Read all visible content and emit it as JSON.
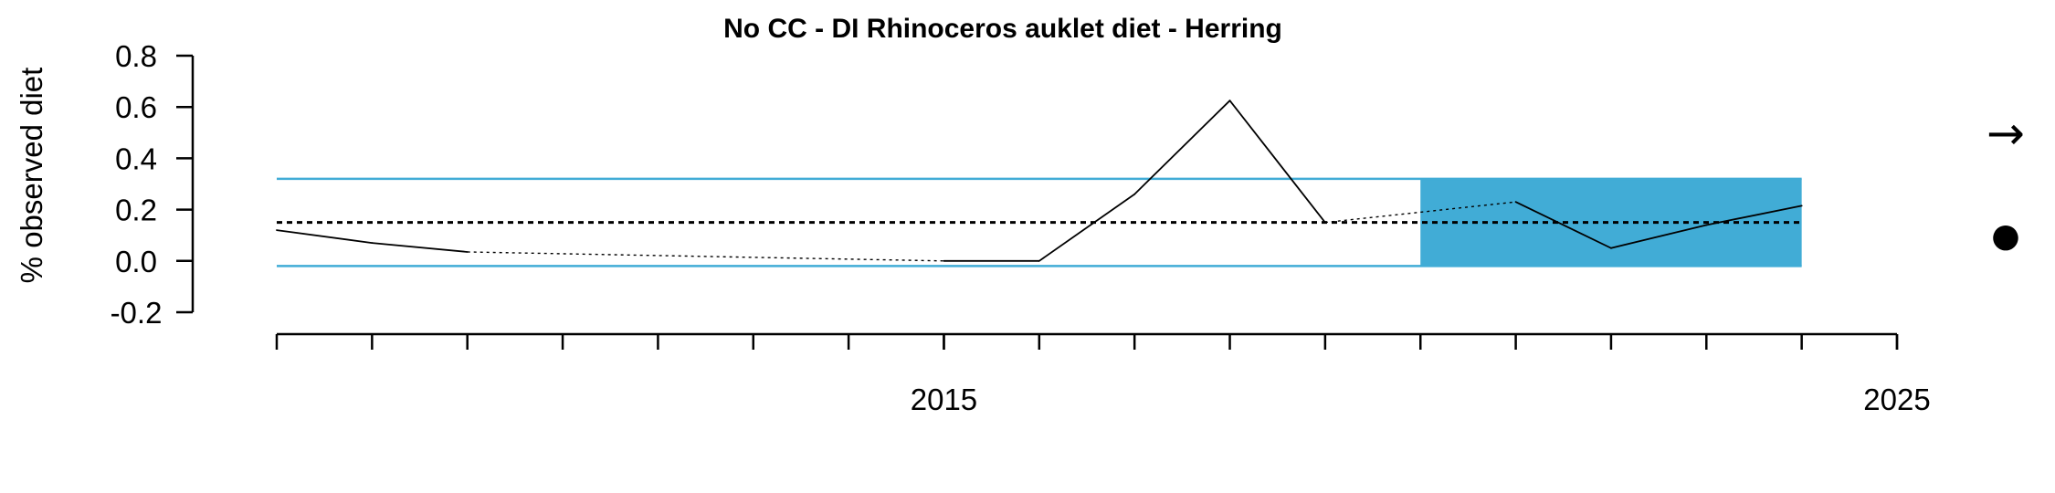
{
  "chart_data": {
    "type": "line",
    "title": "No CC - DI Rhinoceros auklet diet - Herring",
    "ylabel": "% observed diet",
    "xlabel": "",
    "xlim": [
      2008,
      2025
    ],
    "ylim": [
      -0.2,
      0.8
    ],
    "y_ticks": [
      -0.2,
      0.0,
      0.2,
      0.4,
      0.6,
      0.8
    ],
    "y_tick_labels": [
      "-0.2",
      "0.0",
      "0.2",
      "0.4",
      "0.6",
      "0.8"
    ],
    "x_minor_ticks": [
      2008,
      2009,
      2010,
      2011,
      2012,
      2013,
      2014,
      2015,
      2016,
      2017,
      2018,
      2019,
      2020,
      2021,
      2022,
      2023,
      2024,
      2025
    ],
    "x_major_ticks": [
      2015,
      2025
    ],
    "x_tick_labels": [
      "2015",
      "2025"
    ],
    "series": [
      {
        "x": [
          2008,
          2009,
          2010,
          2015,
          2016,
          2017,
          2018,
          2019,
          2021,
          2022,
          2023,
          2024
        ],
        "values": [
          0.12,
          0.07,
          0.035,
          0.0,
          0.0,
          0.26,
          0.625,
          0.15,
          0.23,
          0.05,
          0.14,
          0.215
        ],
        "solid_segments": [
          [
            0,
            1
          ],
          [
            1,
            2
          ],
          [
            3,
            4
          ],
          [
            4,
            5
          ],
          [
            5,
            6
          ],
          [
            6,
            7
          ],
          [
            8,
            9
          ],
          [
            9,
            10
          ],
          [
            10,
            11
          ]
        ],
        "gap_segments": [
          [
            2,
            3
          ],
          [
            7,
            8
          ]
        ],
        "color": "#000000"
      }
    ],
    "long_term_mean": 0.15,
    "upper_band": 0.32,
    "lower_band": -0.02,
    "band_color": "#41acd6",
    "recent_window": [
      2020,
      2024
    ],
    "trend_symbol": "→",
    "mean_symbol": "●"
  }
}
